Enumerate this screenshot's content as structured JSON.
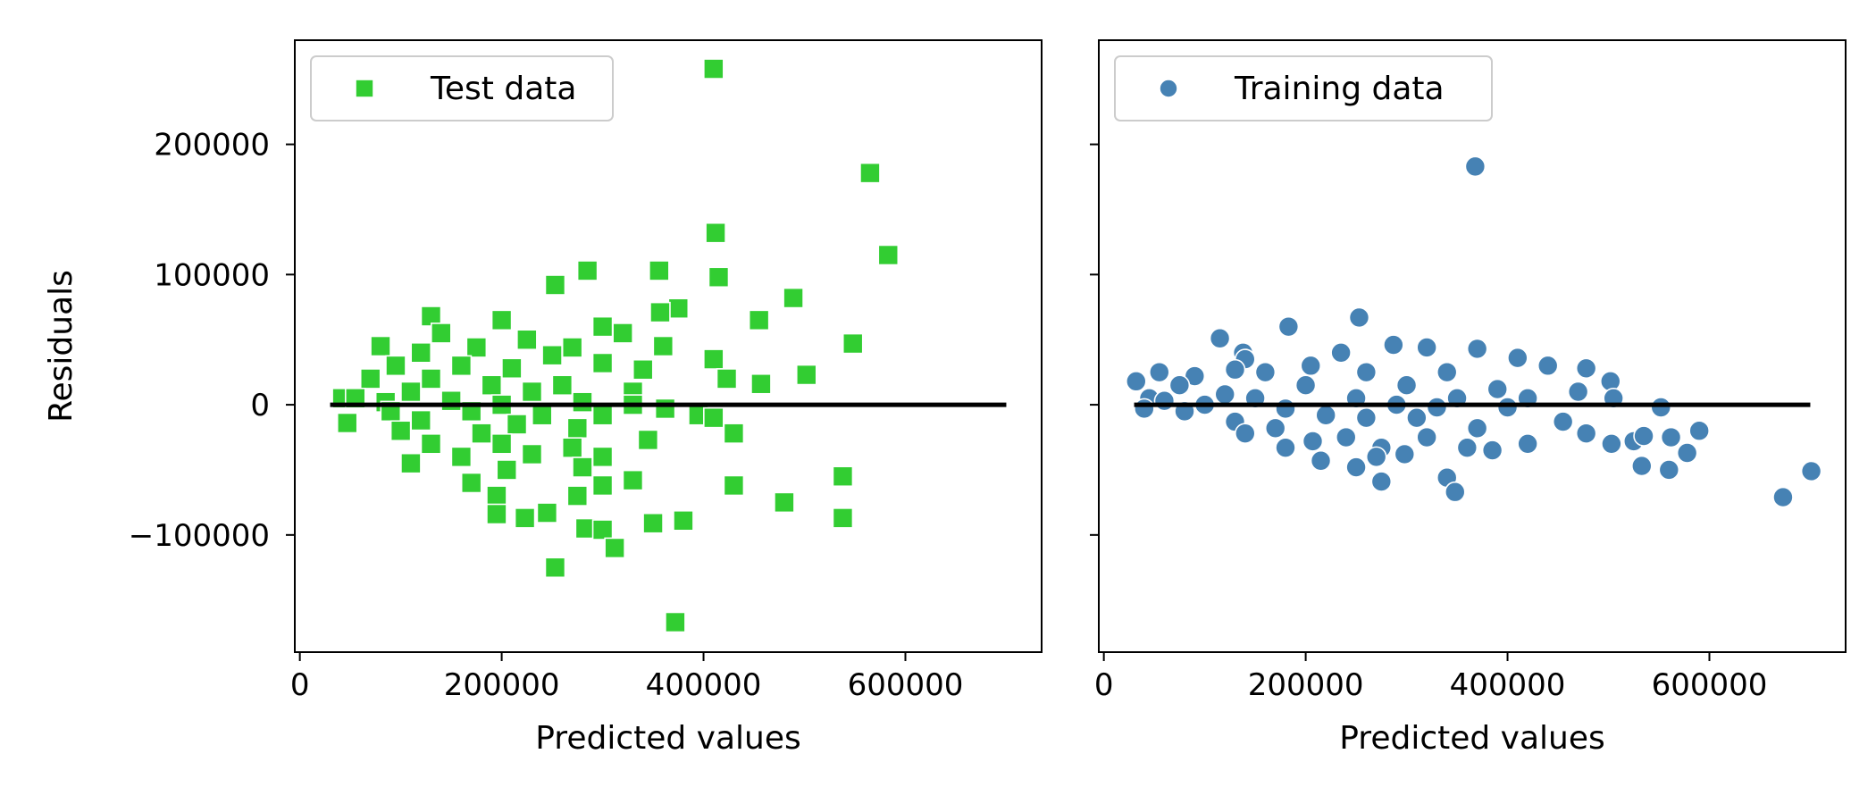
{
  "chart_data": [
    {
      "type": "scatter",
      "marker": "square",
      "xlabel": "Predicted values",
      "ylabel": "Residuals",
      "xlim": [
        -5000,
        735000
      ],
      "ylim": [
        -190000,
        280000
      ],
      "xticks": [
        0,
        200000,
        400000,
        600000
      ],
      "xtick_labels": [
        "0",
        "200000",
        "400000",
        "600000"
      ],
      "yticks": [
        -100000,
        0,
        100000,
        200000
      ],
      "ytick_labels": [
        "−100000",
        "0",
        "100000",
        "200000"
      ],
      "grid": false,
      "legend": {
        "position": "top-left",
        "entries": [
          "Test data"
        ]
      },
      "series": [
        {
          "name": "Test data",
          "color": "#32cd32",
          "points": [
            [
              410000,
              258000
            ],
            [
              565000,
              178000
            ],
            [
              412000,
              132000
            ],
            [
              583000,
              115000
            ],
            [
              285000,
              103000
            ],
            [
              356000,
              103000
            ],
            [
              415000,
              98000
            ],
            [
              253000,
              92000
            ],
            [
              489000,
              82000
            ],
            [
              375000,
              74000
            ],
            [
              357000,
              71000
            ],
            [
              130000,
              68000
            ],
            [
              455000,
              65000
            ],
            [
              200000,
              65000
            ],
            [
              300000,
              60000
            ],
            [
              140000,
              55000
            ],
            [
              320000,
              55000
            ],
            [
              225000,
              50000
            ],
            [
              548000,
              47000
            ],
            [
              80000,
              45000
            ],
            [
              175000,
              44000
            ],
            [
              270000,
              44000
            ],
            [
              360000,
              45000
            ],
            [
              120000,
              40000
            ],
            [
              410000,
              35000
            ],
            [
              250000,
              38000
            ],
            [
              95000,
              30000
            ],
            [
              300000,
              32000
            ],
            [
              160000,
              30000
            ],
            [
              210000,
              28000
            ],
            [
              340000,
              27000
            ],
            [
              502000,
              23000
            ],
            [
              423000,
              20000
            ],
            [
              70000,
              20000
            ],
            [
              130000,
              20000
            ],
            [
              260000,
              15000
            ],
            [
              457000,
              16000
            ],
            [
              190000,
              15000
            ],
            [
              110000,
              10000
            ],
            [
              230000,
              10000
            ],
            [
              330000,
              10000
            ],
            [
              42000,
              5000
            ],
            [
              55000,
              5000
            ],
            [
              85000,
              2000
            ],
            [
              150000,
              3000
            ],
            [
              200000,
              0
            ],
            [
              280000,
              2000
            ],
            [
              330000,
              0
            ],
            [
              362000,
              -3000
            ],
            [
              90000,
              -5000
            ],
            [
              170000,
              -5000
            ],
            [
              240000,
              -8000
            ],
            [
              300000,
              -8000
            ],
            [
              395000,
              -8000
            ],
            [
              410000,
              -10000
            ],
            [
              47000,
              -14000
            ],
            [
              120000,
              -12000
            ],
            [
              215000,
              -15000
            ],
            [
              275000,
              -18000
            ],
            [
              100000,
              -20000
            ],
            [
              180000,
              -22000
            ],
            [
              430000,
              -22000
            ],
            [
              345000,
              -27000
            ],
            [
              130000,
              -30000
            ],
            [
              200000,
              -30000
            ],
            [
              270000,
              -33000
            ],
            [
              160000,
              -40000
            ],
            [
              230000,
              -38000
            ],
            [
              300000,
              -40000
            ],
            [
              110000,
              -45000
            ],
            [
              205000,
              -50000
            ],
            [
              330000,
              -58000
            ],
            [
              280000,
              -48000
            ],
            [
              170000,
              -60000
            ],
            [
              538000,
              -55000
            ],
            [
              430000,
              -62000
            ],
            [
              195000,
              -70000
            ],
            [
              275000,
              -70000
            ],
            [
              300000,
              -62000
            ],
            [
              480000,
              -75000
            ],
            [
              195000,
              -84000
            ],
            [
              223000,
              -87000
            ],
            [
              245000,
              -83000
            ],
            [
              538000,
              -87000
            ],
            [
              350000,
              -91000
            ],
            [
              380000,
              -89000
            ],
            [
              283000,
              -95000
            ],
            [
              300000,
              -96000
            ],
            [
              312000,
              -110000
            ],
            [
              253000,
              -125000
            ],
            [
              372000,
              -167000
            ]
          ]
        }
      ],
      "reference_line": {
        "y": 0,
        "x_range": [
          30000,
          700000
        ],
        "color": "#000000"
      }
    },
    {
      "type": "scatter",
      "marker": "circle",
      "xlabel": "Predicted values",
      "ylabel": "",
      "xlim": [
        -5000,
        735000
      ],
      "ylim": [
        -190000,
        280000
      ],
      "xticks": [
        0,
        200000,
        400000,
        600000
      ],
      "xtick_labels": [
        "0",
        "200000",
        "400000",
        "600000"
      ],
      "yticks": [
        -100000,
        0,
        100000,
        200000
      ],
      "ytick_labels": [],
      "grid": false,
      "legend": {
        "position": "top-left",
        "entries": [
          "Training data"
        ]
      },
      "series": [
        {
          "name": "Training data",
          "color": "#4682b4",
          "points": [
            [
              368000,
              183000
            ],
            [
              253000,
              67000
            ],
            [
              183000,
              60000
            ],
            [
              115000,
              51000
            ],
            [
              287000,
              46000
            ],
            [
              320000,
              44000
            ],
            [
              370000,
              43000
            ],
            [
              235000,
              40000
            ],
            [
              138000,
              40000
            ],
            [
              410000,
              36000
            ],
            [
              140000,
              35000
            ],
            [
              440000,
              30000
            ],
            [
              478000,
              28000
            ],
            [
              130000,
              27000
            ],
            [
              205000,
              30000
            ],
            [
              55000,
              25000
            ],
            [
              90000,
              22000
            ],
            [
              160000,
              25000
            ],
            [
              260000,
              25000
            ],
            [
              340000,
              25000
            ],
            [
              502000,
              18000
            ],
            [
              32000,
              18000
            ],
            [
              75000,
              15000
            ],
            [
              200000,
              15000
            ],
            [
              300000,
              15000
            ],
            [
              390000,
              12000
            ],
            [
              470000,
              10000
            ],
            [
              420000,
              5000
            ],
            [
              120000,
              8000
            ],
            [
              45000,
              5000
            ],
            [
              60000,
              3000
            ],
            [
              150000,
              5000
            ],
            [
              250000,
              5000
            ],
            [
              350000,
              5000
            ],
            [
              505000,
              5000
            ],
            [
              100000,
              0
            ],
            [
              180000,
              -3000
            ],
            [
              290000,
              0
            ],
            [
              330000,
              -2000
            ],
            [
              400000,
              -2000
            ],
            [
              552000,
              -2000
            ],
            [
              40000,
              -3000
            ],
            [
              80000,
              -5000
            ],
            [
              220000,
              -8000
            ],
            [
              260000,
              -10000
            ],
            [
              310000,
              -10000
            ],
            [
              455000,
              -13000
            ],
            [
              130000,
              -13000
            ],
            [
              170000,
              -18000
            ],
            [
              370000,
              -18000
            ],
            [
              590000,
              -20000
            ],
            [
              478000,
              -22000
            ],
            [
              240000,
              -25000
            ],
            [
              320000,
              -25000
            ],
            [
              140000,
              -22000
            ],
            [
              207000,
              -28000
            ],
            [
              420000,
              -30000
            ],
            [
              525000,
              -28000
            ],
            [
              503000,
              -30000
            ],
            [
              275000,
              -33000
            ],
            [
              180000,
              -33000
            ],
            [
              360000,
              -33000
            ],
            [
              535000,
              -24000
            ],
            [
              562000,
              -25000
            ],
            [
              298000,
              -38000
            ],
            [
              385000,
              -35000
            ],
            [
              578000,
              -37000
            ],
            [
              215000,
              -43000
            ],
            [
              270000,
              -40000
            ],
            [
              250000,
              -48000
            ],
            [
              533000,
              -47000
            ],
            [
              560000,
              -50000
            ],
            [
              340000,
              -56000
            ],
            [
              275000,
              -59000
            ],
            [
              348000,
              -67000
            ],
            [
              701000,
              -51000
            ],
            [
              673000,
              -71000
            ]
          ]
        }
      ],
      "reference_line": {
        "y": 0,
        "x_range": [
          30000,
          700000
        ],
        "color": "#000000"
      }
    }
  ]
}
